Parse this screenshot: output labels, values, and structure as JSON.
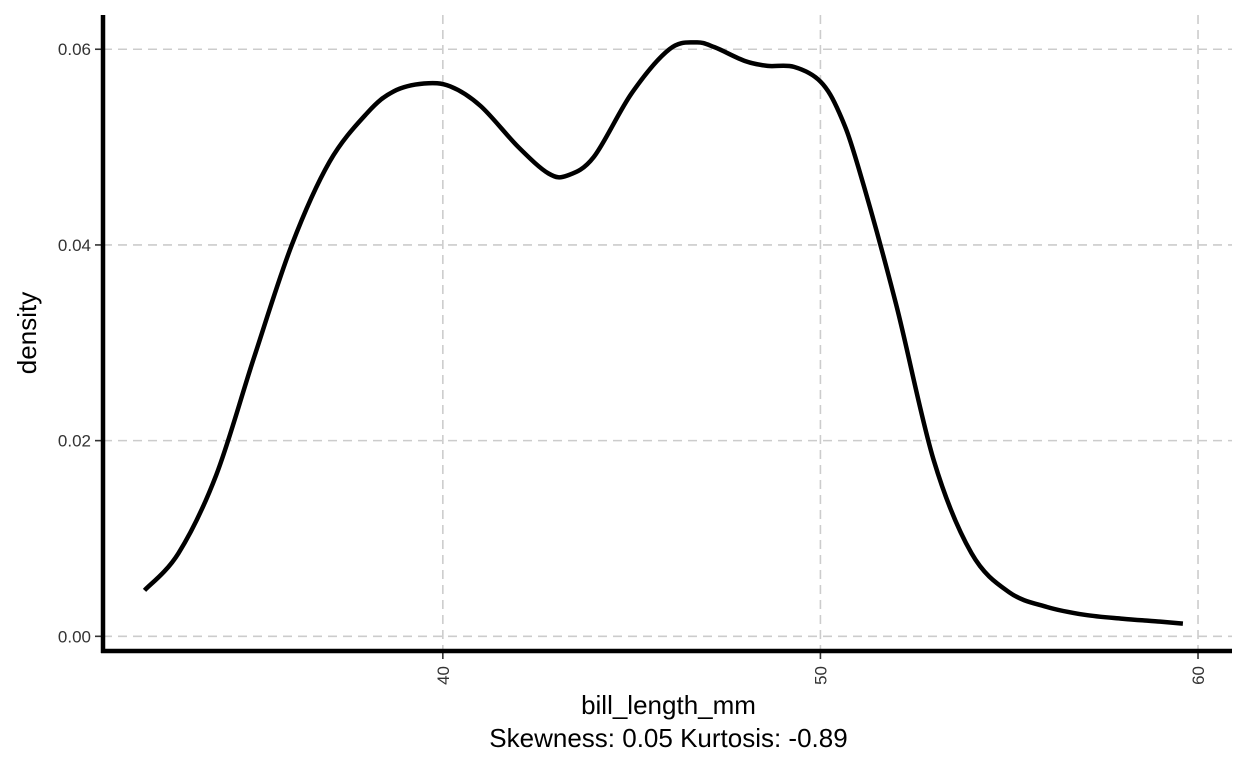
{
  "chart_data": {
    "type": "line",
    "title": "",
    "xlabel": "bill_length_mm",
    "caption": "Skewness: 0.05 Kurtosis: -0.89",
    "ylabel": "density",
    "xlim": [
      31.0,
      60.9
    ],
    "ylim": [
      -0.0015,
      0.0635
    ],
    "x_ticks": [
      {
        "value": 40,
        "label": "40"
      },
      {
        "value": 50,
        "label": "50"
      },
      {
        "value": 60,
        "label": "60"
      }
    ],
    "y_ticks": [
      {
        "value": 0.0,
        "label": "0.00"
      },
      {
        "value": 0.02,
        "label": "0.02"
      },
      {
        "value": 0.04,
        "label": "0.04"
      },
      {
        "value": 0.06,
        "label": "0.06"
      }
    ],
    "grid": true,
    "legend": "none",
    "line_color": "#000000",
    "grid_color": "#cccccc",
    "series": [
      {
        "x": [
          32.1,
          33.0,
          34.0,
          35.0,
          36.0,
          37.0,
          38.0,
          38.7,
          39.5,
          40.2,
          41.0,
          42.0,
          42.8,
          43.3,
          44.0,
          45.0,
          46.0,
          46.7,
          47.2,
          48.0,
          48.6,
          49.3,
          50.0,
          50.5,
          51.0,
          52.0,
          53.0,
          54.0,
          55.0,
          56.0,
          57.0,
          58.0,
          59.0,
          59.6
        ],
        "values": [
          0.0047,
          0.0085,
          0.0165,
          0.0285,
          0.04,
          0.0485,
          0.0535,
          0.0557,
          0.0565,
          0.0562,
          0.0542,
          0.05,
          0.0473,
          0.0471,
          0.049,
          0.0555,
          0.06,
          0.0607,
          0.0602,
          0.0588,
          0.0583,
          0.0582,
          0.0567,
          0.0535,
          0.048,
          0.034,
          0.018,
          0.0085,
          0.0045,
          0.003,
          0.0022,
          0.0018,
          0.0015,
          0.0013
        ]
      }
    ]
  }
}
